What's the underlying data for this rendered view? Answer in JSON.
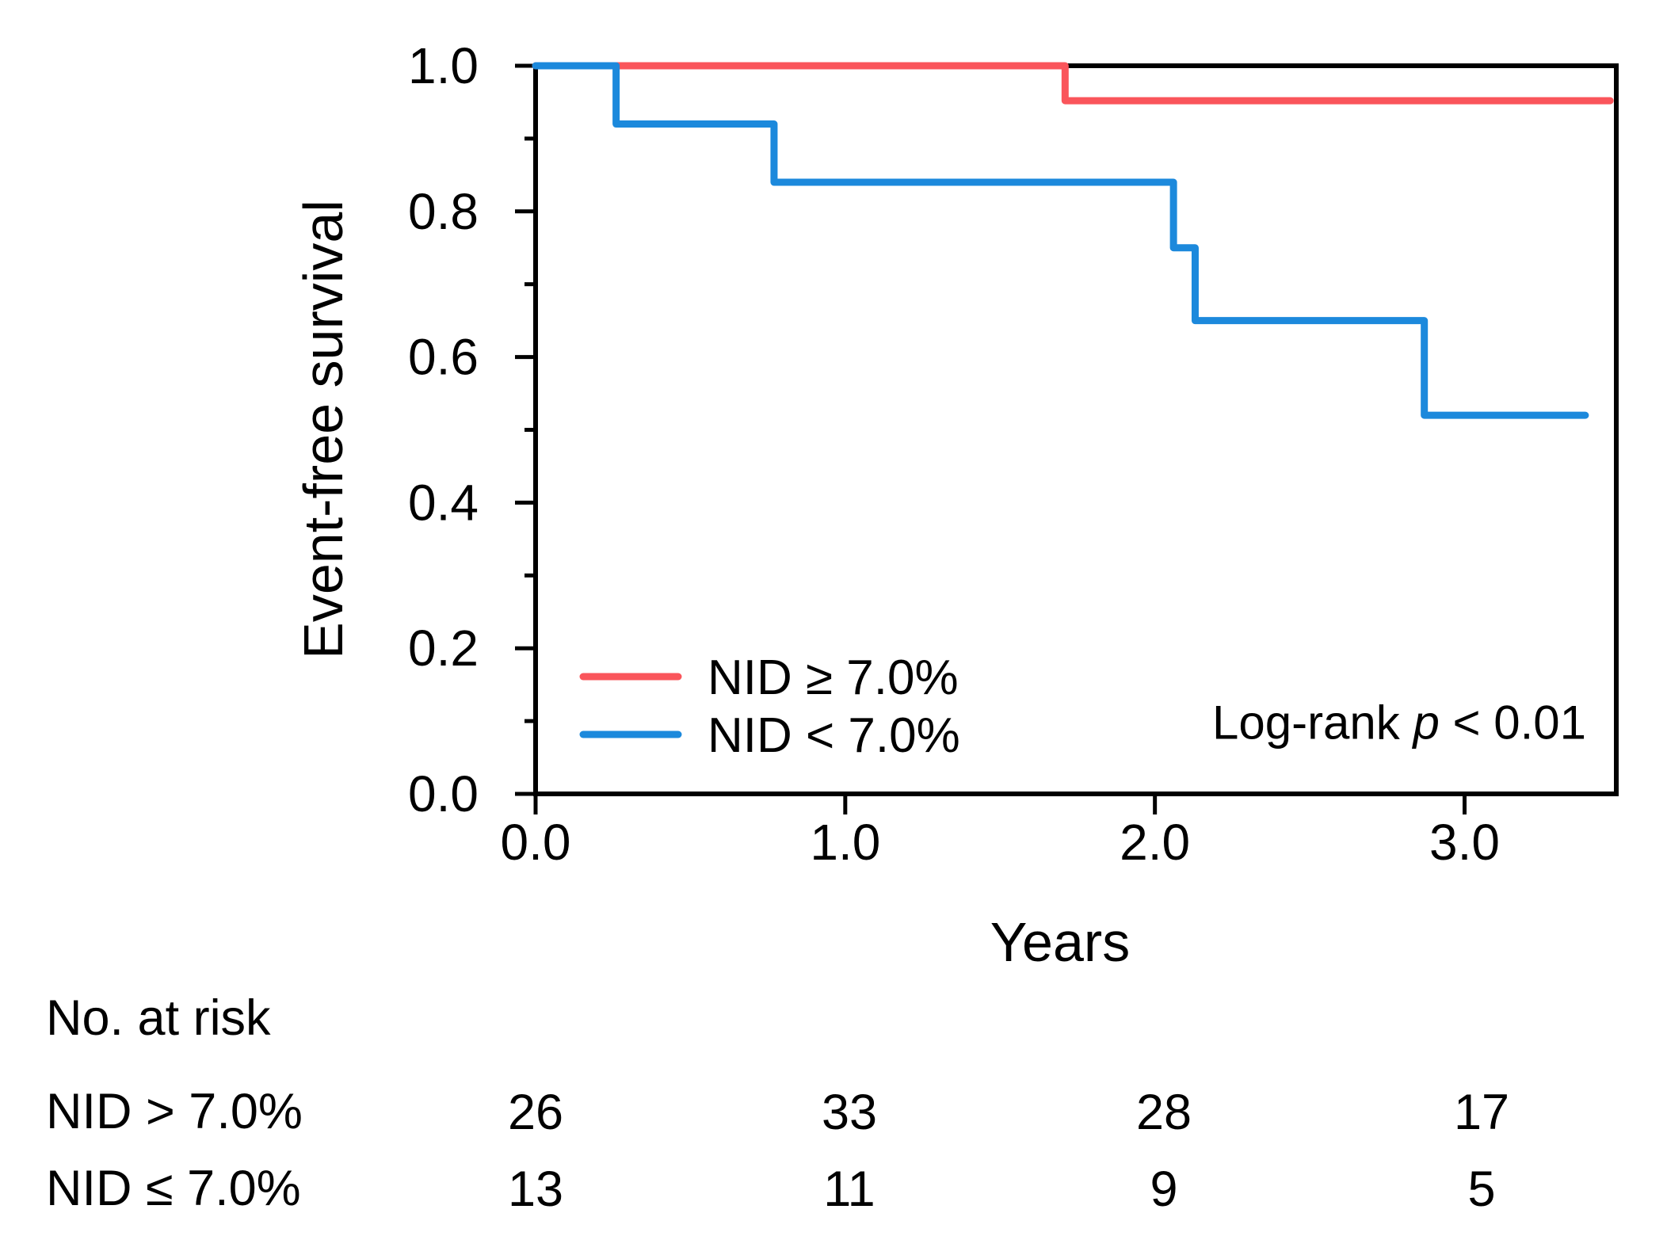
{
  "chart_data": {
    "type": "line",
    "subtype": "kaplan-meier-step",
    "title": "",
    "xlabel": "Years",
    "ylabel": "Event-free survival",
    "xlim": [
      0,
      3.49
    ],
    "ylim": [
      0,
      1.0
    ],
    "grid": false,
    "x_ticks": {
      "values": [
        0,
        1,
        2,
        3
      ],
      "labels": [
        "0.0",
        "1.0",
        "2.0",
        "3.0"
      ]
    },
    "y_ticks": {
      "major_values": [
        0,
        0.2,
        0.4,
        0.6,
        0.8,
        1.0
      ],
      "major_labels": [
        "0.0",
        "0.2",
        "0.4",
        "0.6",
        "0.8",
        "1.0"
      ],
      "minor_values": [
        0.1,
        0.3,
        0.5,
        0.7,
        0.9
      ]
    },
    "series": [
      {
        "name": "NID ≥ 7.0%",
        "color": "#fa555b",
        "points": [
          [
            0,
            1.0
          ],
          [
            1.71,
            1.0
          ],
          [
            1.71,
            0.952
          ],
          [
            3.47,
            0.952
          ]
        ]
      },
      {
        "name": "NID < 7.0%",
        "color": "#1c89dc",
        "points": [
          [
            0,
            1.0
          ],
          [
            0.26,
            1.0
          ],
          [
            0.26,
            0.92
          ],
          [
            0.77,
            0.92
          ],
          [
            0.77,
            0.84
          ],
          [
            2.06,
            0.84
          ],
          [
            2.06,
            0.75
          ],
          [
            2.13,
            0.75
          ],
          [
            2.13,
            0.65
          ],
          [
            2.87,
            0.65
          ],
          [
            2.87,
            0.52
          ],
          [
            3.39,
            0.52
          ]
        ]
      }
    ],
    "legend": {
      "position": "inside-lower-left",
      "entries": [
        {
          "label": "NID ≥ 7.0%",
          "color": "#fa555b"
        },
        {
          "label": "NID < 7.0%",
          "color": "#1c89dc"
        }
      ]
    },
    "annotation": {
      "full": "Log-rank p < 0.01",
      "prefix": "Log-rank ",
      "p": "p",
      "suffix": " < 0.01"
    },
    "risk_table": {
      "header": "No. at risk",
      "time_points": [
        0,
        1,
        2,
        3
      ],
      "rows": [
        {
          "label": "NID > 7.0%",
          "values": [
            "26",
            "33",
            "28",
            "17"
          ]
        },
        {
          "label": "NID ≤ 7.0%",
          "values": [
            "13",
            "11",
            "9",
            "5"
          ]
        }
      ]
    },
    "colors": {
      "curve_red": "#fa555b",
      "curve_blue": "#1c89dc",
      "axis": "#000000"
    }
  }
}
